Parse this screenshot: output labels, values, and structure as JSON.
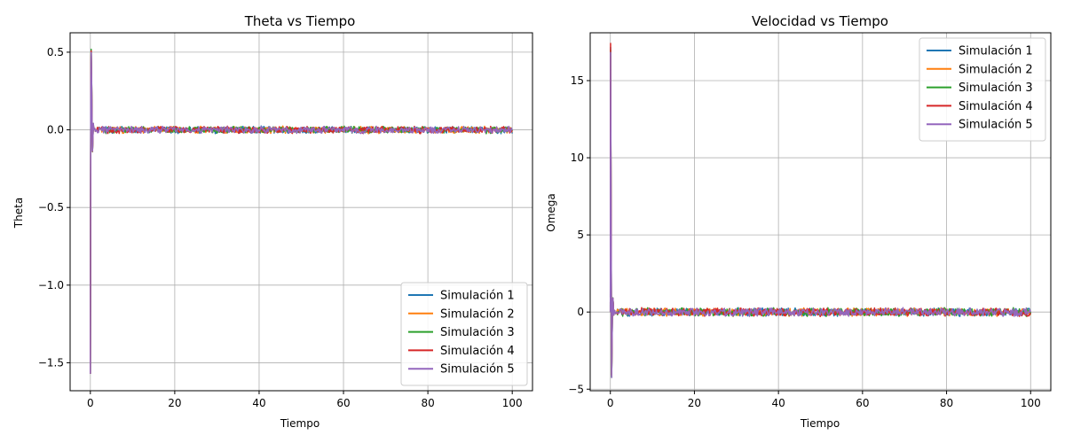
{
  "colors": {
    "grid": "#b0b0b0",
    "axes": "#000000",
    "series": [
      "#1f77b4",
      "#ff7f0e",
      "#2ca02c",
      "#d62728",
      "#9467bd"
    ]
  },
  "chart_data": [
    {
      "type": "line",
      "title": "Theta vs Tiempo",
      "xlabel": "Tiempo",
      "ylabel": "Theta",
      "xlim": [
        -4.8,
        104.8
      ],
      "ylim": [
        -1.68,
        0.625
      ],
      "xticks": [
        0,
        20,
        40,
        60,
        80,
        100
      ],
      "yticks": [
        -1.5,
        -1.0,
        -0.5,
        0.0,
        0.5
      ],
      "xtick_labels": [
        "0",
        "20",
        "40",
        "60",
        "80",
        "100"
      ],
      "ytick_labels": [
        "−1.5",
        "−1.0",
        "−0.5",
        "0.0",
        "0.5"
      ],
      "grid": true,
      "legend": "lower-right",
      "transient": [
        [
          0,
          -1.5708
        ],
        [
          0.05,
          -0.6
        ],
        [
          0.1,
          0.2
        ],
        [
          0.15,
          0.45
        ],
        [
          0.2,
          0.51
        ],
        [
          0.3,
          0.3
        ],
        [
          0.4,
          0.05
        ],
        [
          0.5,
          -0.14
        ],
        [
          0.6,
          -0.05
        ],
        [
          0.7,
          0.04
        ],
        [
          0.8,
          0.0
        ],
        [
          1.0,
          0.01
        ],
        [
          1.2,
          -0.01
        ],
        [
          1.5,
          0.0
        ]
      ],
      "steady_state": {
        "x_start": 1.5,
        "x_end": 100,
        "mean": 0.0,
        "amplitude": 0.025
      },
      "series": [
        {
          "name": "Simulación 1",
          "color": "#1f77b4"
        },
        {
          "name": "Simulación 2",
          "color": "#ff7f0e"
        },
        {
          "name": "Simulación 3",
          "color": "#2ca02c"
        },
        {
          "name": "Simulación 4",
          "color": "#d62728"
        },
        {
          "name": "Simulación 5",
          "color": "#9467bd"
        }
      ]
    },
    {
      "type": "line",
      "title": "Velocidad vs Tiempo",
      "xlabel": "Tiempo",
      "ylabel": "Omega",
      "xlim": [
        -4.8,
        104.8
      ],
      "ylim": [
        -5.1,
        18.1
      ],
      "xticks": [
        0,
        20,
        40,
        60,
        80,
        100
      ],
      "yticks": [
        -5,
        0,
        5,
        10,
        15
      ],
      "xtick_labels": [
        "0",
        "20",
        "40",
        "60",
        "80",
        "100"
      ],
      "ytick_labels": [
        "−5",
        "0",
        "5",
        "10",
        "15"
      ],
      "grid": true,
      "legend": "upper-right",
      "transient": [
        [
          0,
          0
        ],
        [
          0.02,
          8
        ],
        [
          0.05,
          17.0
        ],
        [
          0.1,
          12
        ],
        [
          0.2,
          4
        ],
        [
          0.3,
          -4.2
        ],
        [
          0.4,
          -2
        ],
        [
          0.5,
          0.3
        ],
        [
          0.6,
          0.9
        ],
        [
          0.7,
          0.5
        ],
        [
          0.8,
          -0.2
        ],
        [
          1.0,
          0.1
        ],
        [
          1.2,
          -0.1
        ],
        [
          1.5,
          0.0
        ]
      ],
      "steady_state": {
        "x_start": 1.5,
        "x_end": 100,
        "mean": 0.0,
        "amplitude": 0.3
      },
      "series": [
        {
          "name": "Simulación 1",
          "color": "#1f77b4"
        },
        {
          "name": "Simulación 2",
          "color": "#ff7f0e"
        },
        {
          "name": "Simulación 3",
          "color": "#2ca02c"
        },
        {
          "name": "Simulación 4",
          "color": "#d62728"
        },
        {
          "name": "Simulación 5",
          "color": "#9467bd"
        }
      ]
    }
  ]
}
